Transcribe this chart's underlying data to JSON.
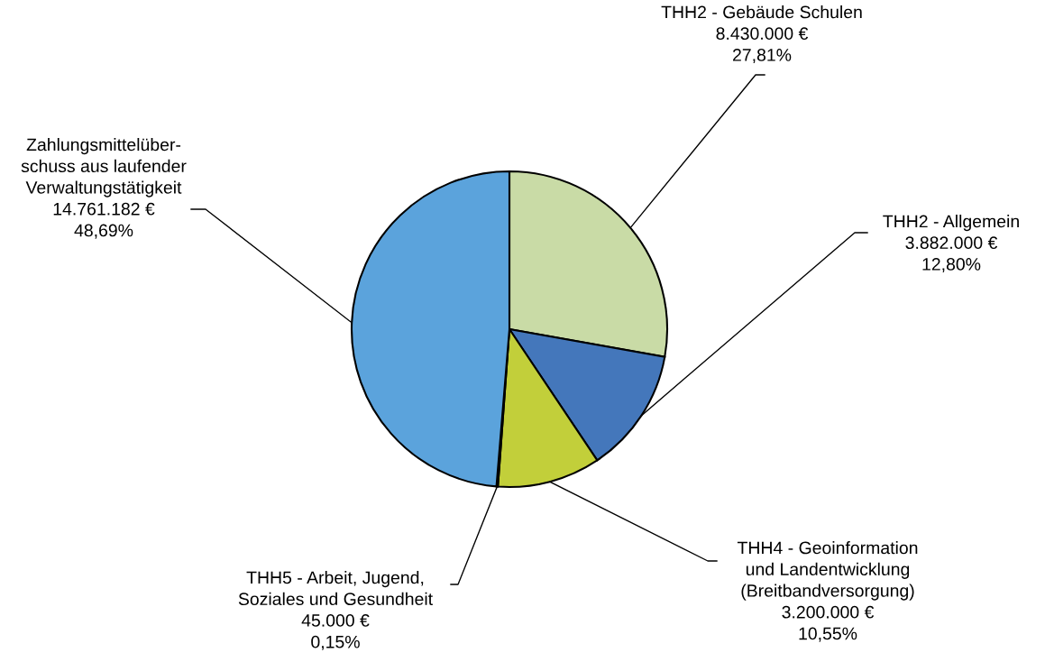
{
  "chart_data": {
    "type": "pie",
    "categories": [
      "THH2 - Gebäude Schulen",
      "THH2 - Allgemein",
      "THH4 - Geoinformation\nund Landentwicklung\n(Breitbandversorgung)",
      "THH5 - Arbeit, Jugend,\nSoziales und Gesundheit",
      "Zahlungsmittelüber-\nschuss aus laufender\nVerwaltungstätigkeit"
    ],
    "values": [
      8430000,
      3882000,
      3200000,
      45000,
      14761182
    ],
    "value_labels": [
      "8.430.000 €\n27,81%",
      "3.882.000 €\n12,80%",
      "3.200.000 €\n10,55%",
      "45.000 €\n0,15%",
      "14.761.182 €\n48,69%"
    ],
    "colors": [
      "#c9dba6",
      "#4477bb",
      "#c2cf3a",
      "#3a5a2a",
      "#5ba3dc"
    ],
    "legend": false
  }
}
